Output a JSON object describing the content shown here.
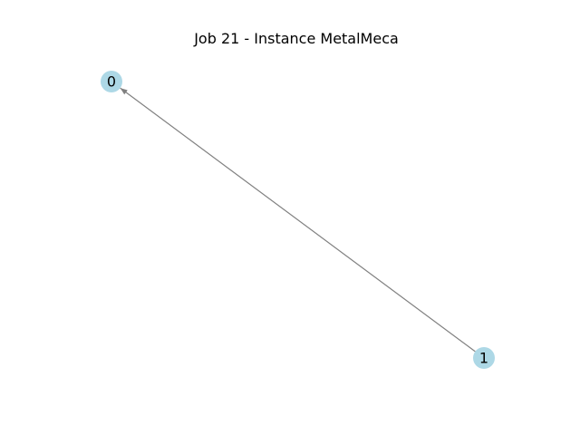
{
  "title": "Job 21 - Instance MetalMeca",
  "colors": {
    "node_fill": "#add8e6",
    "edge": "#808080",
    "label": "#000000",
    "background": "#ffffff"
  },
  "graph": {
    "directed": true,
    "nodes": [
      {
        "id": "0",
        "label": "0"
      },
      {
        "id": "1",
        "label": "1"
      }
    ],
    "edges": [
      {
        "source": "1",
        "target": "0"
      }
    ]
  }
}
